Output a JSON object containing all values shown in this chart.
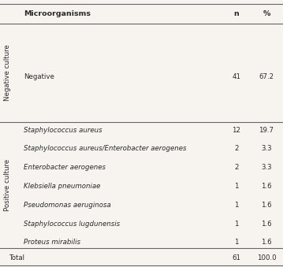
{
  "header": [
    "Microorganisms",
    "n",
    "%"
  ],
  "negative_label": "Negative culture",
  "negative_rows": [
    [
      "Negative",
      "41",
      "67.2"
    ]
  ],
  "positive_label": "Positive culture",
  "positive_rows": [
    [
      "Staphylococcus aureus",
      "12",
      "19.7"
    ],
    [
      "Staphylococcus aureus/Enterobacter aerogenes",
      "2",
      "3.3"
    ],
    [
      "Enterobacter aerogenes",
      "2",
      "3.3"
    ],
    [
      "Klebsiella pneumoniae",
      "1",
      "1.6"
    ],
    [
      "Pseudomonas aeruginosa",
      "1",
      "1.6"
    ],
    [
      "Staphylococcus lugdunensis",
      "1",
      "1.6"
    ],
    [
      "Proteus mirabilis",
      "1",
      "1.6"
    ]
  ],
  "total_row": [
    "Total",
    "61",
    "100.0"
  ],
  "bg_color": "#f7f4f0",
  "text_color": "#2a2a2a",
  "line_color": "#666666",
  "font_size": 6.2,
  "header_font_size": 6.8
}
